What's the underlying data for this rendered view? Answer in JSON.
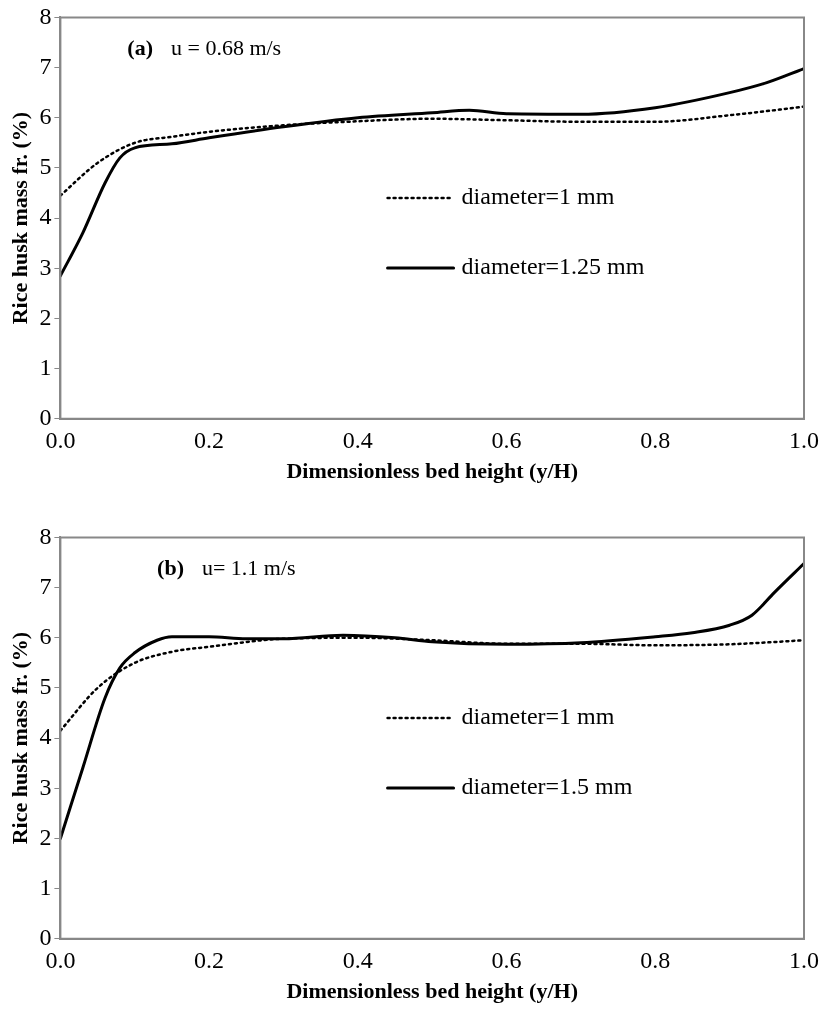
{
  "chart_data": [
    {
      "type": "line",
      "annotations": [
        "(a)",
        "u = 0.68 m/s"
      ],
      "xlabel": "Dimensionless bed height (y/H)",
      "ylabel": "Rice husk mass fr. (%)",
      "xlim": [
        0,
        1
      ],
      "xticks": [
        {
          "value": 0,
          "label": "0.0"
        },
        {
          "value": 0.2,
          "label": "0.2"
        },
        {
          "value": 0.4,
          "label": "0.4"
        },
        {
          "value": 0.6,
          "label": "0.6"
        },
        {
          "value": 0.8,
          "label": "0.8"
        },
        {
          "value": 1,
          "label": "1.0"
        }
      ],
      "ylim": [
        0,
        8
      ],
      "yticks": [
        0,
        1,
        2,
        3,
        4,
        5,
        6,
        7,
        8
      ],
      "grid": false,
      "legend": "center",
      "series": [
        {
          "name": "diameter=1 mm",
          "color": "#000000",
          "line_style": "dotted",
          "x": [
            0,
            0.05,
            0.1,
            0.15,
            0.2,
            0.3,
            0.4,
            0.5,
            0.6,
            0.7,
            0.8,
            0.9,
            1.0
          ],
          "values": [
            4.45,
            5.1,
            5.5,
            5.62,
            5.72,
            5.85,
            5.93,
            5.98,
            5.95,
            5.92,
            5.92,
            6.05,
            6.22
          ]
        },
        {
          "name": "diameter=1.25 mm",
          "color": "#000000",
          "line_style": "solid",
          "x": [
            0,
            0.03,
            0.06,
            0.08,
            0.1,
            0.15,
            0.2,
            0.3,
            0.4,
            0.5,
            0.55,
            0.6,
            0.7,
            0.8,
            0.9,
            0.95,
            1.0
          ],
          "values": [
            2.85,
            3.7,
            4.7,
            5.2,
            5.4,
            5.48,
            5.6,
            5.82,
            6.0,
            6.1,
            6.15,
            6.08,
            6.07,
            6.2,
            6.5,
            6.7,
            6.98
          ]
        }
      ]
    },
    {
      "type": "line",
      "annotations": [
        "(b)",
        "u= 1.1 m/s"
      ],
      "xlabel": "Dimensionless bed height (y/H)",
      "ylabel": "Rice husk mass fr. (%)",
      "xlim": [
        0,
        1
      ],
      "xticks": [
        {
          "value": 0,
          "label": "0.0"
        },
        {
          "value": 0.2,
          "label": "0.2"
        },
        {
          "value": 0.4,
          "label": "0.4"
        },
        {
          "value": 0.6,
          "label": "0.6"
        },
        {
          "value": 0.8,
          "label": "0.8"
        },
        {
          "value": 1,
          "label": "1.0"
        }
      ],
      "ylim": [
        0,
        8
      ],
      "yticks": [
        0,
        1,
        2,
        3,
        4,
        5,
        6,
        7,
        8
      ],
      "grid": false,
      "legend": "center",
      "series": [
        {
          "name": "diameter=1 mm",
          "color": "#000000",
          "line_style": "dotted",
          "x": [
            0,
            0.05,
            0.1,
            0.15,
            0.2,
            0.3,
            0.4,
            0.5,
            0.6,
            0.7,
            0.8,
            0.9,
            1.0
          ],
          "values": [
            4.15,
            5.0,
            5.5,
            5.72,
            5.82,
            5.98,
            6.0,
            5.95,
            5.88,
            5.88,
            5.85,
            5.87,
            5.95
          ]
        },
        {
          "name": "diameter=1.5 mm",
          "color": "#000000",
          "line_style": "solid",
          "x": [
            0,
            0.03,
            0.06,
            0.08,
            0.1,
            0.13,
            0.15,
            0.2,
            0.25,
            0.3,
            0.38,
            0.45,
            0.5,
            0.6,
            0.7,
            0.8,
            0.85,
            0.9,
            0.93,
            0.96,
            1.0
          ],
          "values": [
            2.0,
            3.4,
            4.8,
            5.4,
            5.7,
            5.95,
            6.02,
            6.02,
            5.98,
            5.98,
            6.05,
            6.0,
            5.92,
            5.87,
            5.9,
            6.02,
            6.1,
            6.25,
            6.45,
            6.9,
            7.48
          ]
        }
      ]
    }
  ]
}
